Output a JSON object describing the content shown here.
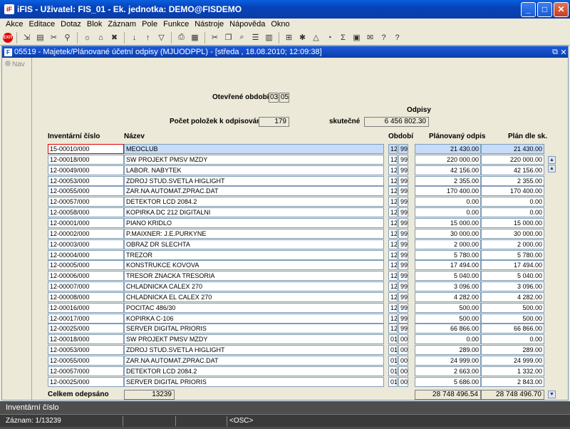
{
  "window": {
    "title": "iFIS - Uživatel: FIS_01 - Ek. jednotka: DEMO@FISDEMO",
    "app_icon": "iF"
  },
  "menu": [
    "Akce",
    "Editace",
    "Dotaz",
    "Blok",
    "Záznam",
    "Pole",
    "Funkce",
    "Nástroje",
    "Nápověda",
    "Okno"
  ],
  "toolbar": {
    "exit_label": "EXIT"
  },
  "form": {
    "title": "05519 - Majetek/Plánované účetní odpisy (MJUODPPL) - [středa , 18.08.2010; 12:09:38]",
    "icon": "F",
    "nav_label": "Nav",
    "open_period_label": "Otevřené období",
    "open_period_a": "03",
    "open_period_b": "05",
    "odpisy_label": "Odpisy",
    "count_label": "Počet položek k odpisování",
    "count_value": "179",
    "actual_label": "skutečné",
    "actual_value": "6 456 802.30",
    "col_inv": "Inventární číslo",
    "col_name": "Název",
    "col_period": "Období",
    "col_planned": "Plánovaný odpis",
    "col_plan_sk": "Plán dle sk.",
    "total_label": "Celkem odepsáno",
    "total_count": "13239",
    "total_planned": "28 748 496.54",
    "total_plan_sk": "28 748 496.70"
  },
  "rows": [
    {
      "inv": "15-00010/000",
      "name": "MEOCLUB",
      "p1": "12",
      "p2": "99",
      "planned": "21 430.00",
      "plan_sk": "21 430.00"
    },
    {
      "inv": "12-00018/000",
      "name": "SW PROJEKT PMSV MZDY",
      "p1": "12",
      "p2": "99",
      "planned": "220 000.00",
      "plan_sk": "220 000.00"
    },
    {
      "inv": "12-00049/000",
      "name": "LABOR. NABYTEK",
      "p1": "12",
      "p2": "99",
      "planned": "42 156.00",
      "plan_sk": "42 156.00"
    },
    {
      "inv": "12-00053/000",
      "name": "ZDROJ STUD.SVETLA HIGLIGHT",
      "p1": "12",
      "p2": "99",
      "planned": "2 355.00",
      "plan_sk": "2 355.00"
    },
    {
      "inv": "12-00055/000",
      "name": "ZAR.NA AUTOMAT.ZPRAC.DAT",
      "p1": "12",
      "p2": "99",
      "planned": "170 400.00",
      "plan_sk": "170 400.00"
    },
    {
      "inv": "12-00057/000",
      "name": "DETEKTOR LCD 2084.2",
      "p1": "12",
      "p2": "99",
      "planned": "0.00",
      "plan_sk": "0.00"
    },
    {
      "inv": "12-00058/000",
      "name": "KOPIRKA DC 212 DIGITALNI",
      "p1": "12",
      "p2": "99",
      "planned": "0.00",
      "plan_sk": "0.00"
    },
    {
      "inv": "12-00001/000",
      "name": "PIANO KRIDLO",
      "p1": "12",
      "p2": "99",
      "planned": "15 000.00",
      "plan_sk": "15 000.00"
    },
    {
      "inv": "12-00002/000",
      "name": "P.MAIXNER: J.E.PURKYNE",
      "p1": "12",
      "p2": "99",
      "planned": "30 000.00",
      "plan_sk": "30 000.00"
    },
    {
      "inv": "12-00003/000",
      "name": "OBRAZ DR SLECHTA",
      "p1": "12",
      "p2": "99",
      "planned": "2 000.00",
      "plan_sk": "2 000.00"
    },
    {
      "inv": "12-00004/000",
      "name": "TREZOR",
      "p1": "12",
      "p2": "99",
      "planned": "5 780.00",
      "plan_sk": "5 780.00"
    },
    {
      "inv": "12-00005/000",
      "name": "KONSTRUKCE KOVOVA",
      "p1": "12",
      "p2": "99",
      "planned": "17 494.00",
      "plan_sk": "17 494.00"
    },
    {
      "inv": "12-00006/000",
      "name": "TRESOR ZNACKA TRESORIA",
      "p1": "12",
      "p2": "99",
      "planned": "5 040.00",
      "plan_sk": "5 040.00"
    },
    {
      "inv": "12-00007/000",
      "name": "CHLADNICKA CALEX 270",
      "p1": "12",
      "p2": "99",
      "planned": "3 096.00",
      "plan_sk": "3 096.00"
    },
    {
      "inv": "12-00008/000",
      "name": "CHLADNICKA EL CALEX 270",
      "p1": "12",
      "p2": "99",
      "planned": "4 282.00",
      "plan_sk": "4 282.00"
    },
    {
      "inv": "12-00016/000",
      "name": "POCITAC 486/30",
      "p1": "12",
      "p2": "99",
      "planned": "500.00",
      "plan_sk": "500.00"
    },
    {
      "inv": "12-00017/000",
      "name": "KOPIRKA C-106",
      "p1": "12",
      "p2": "99",
      "planned": "500.00",
      "plan_sk": "500.00"
    },
    {
      "inv": "12-00025/000",
      "name": "SERVER DIGITAL PRIORIS",
      "p1": "12",
      "p2": "99",
      "planned": "66 866.00",
      "plan_sk": "66 866.00"
    },
    {
      "inv": "12-00018/000",
      "name": "SW PROJEKT PMSV MZDY",
      "p1": "01",
      "p2": "00",
      "planned": "0.00",
      "plan_sk": "0.00"
    },
    {
      "inv": "12-00053/000",
      "name": "ZDROJ STUD.SVETLA HIGLIGHT",
      "p1": "01",
      "p2": "00",
      "planned": "289.00",
      "plan_sk": "289.00"
    },
    {
      "inv": "12-00055/000",
      "name": "ZAR.NA AUTOMAT.ZPRAC.DAT",
      "p1": "01",
      "p2": "00",
      "planned": "24 999.00",
      "plan_sk": "24 999.00"
    },
    {
      "inv": "12-00057/000",
      "name": "DETEKTOR LCD 2084.2",
      "p1": "01",
      "p2": "00",
      "planned": "2 663.00",
      "plan_sk": "1 332.00"
    },
    {
      "inv": "12-00025/000",
      "name": "SERVER DIGITAL PRIORIS",
      "p1": "01",
      "p2": "00",
      "planned": "5 686.00",
      "plan_sk": "2 843.00"
    }
  ],
  "status": {
    "field_label": "Inventární číslo",
    "record": "Záznam: 1/13239",
    "mode": "<OSC>"
  },
  "colors": {
    "title_bar": "#0a5fe0",
    "selected_row": "#c6dcf8",
    "current_cell_border": "#dd0000"
  }
}
